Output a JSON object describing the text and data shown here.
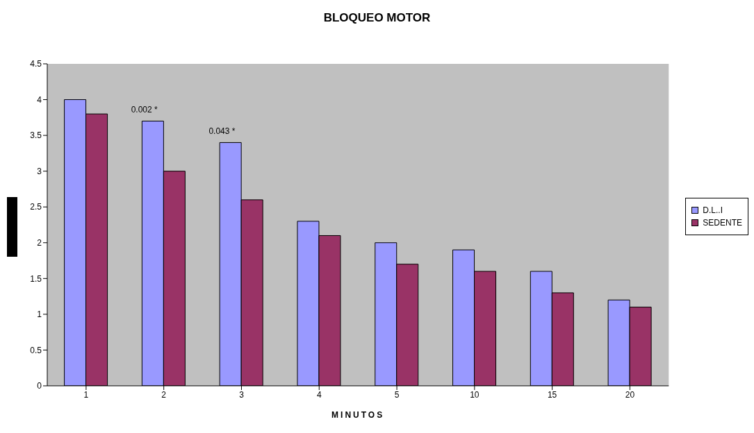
{
  "chart_data": {
    "type": "bar",
    "title": "BLOQUEO MOTOR",
    "xlabel": "MINUTOS",
    "categories": [
      "1",
      "2",
      "3",
      "4",
      "5",
      "10",
      "15",
      "20"
    ],
    "series": [
      {
        "name": "D.L..I",
        "color": "#9999ff",
        "values": [
          4.0,
          3.7,
          3.4,
          2.3,
          2.0,
          1.9,
          1.6,
          1.2
        ]
      },
      {
        "name": "SEDENTE",
        "color": "#993366",
        "values": [
          3.8,
          3.0,
          2.6,
          2.1,
          1.7,
          1.6,
          1.3,
          1.1
        ]
      }
    ],
    "ylim": [
      0,
      4.5
    ],
    "yticks": [
      0,
      0.5,
      1,
      1.5,
      2,
      2.5,
      3,
      3.5,
      4,
      4.5
    ],
    "grid": false,
    "legend": "right",
    "annotations": [
      {
        "text": "0.002 *",
        "x": "2",
        "y": 3.7
      },
      {
        "text": "0.043 *",
        "x": "3",
        "y": 3.4
      }
    ]
  }
}
